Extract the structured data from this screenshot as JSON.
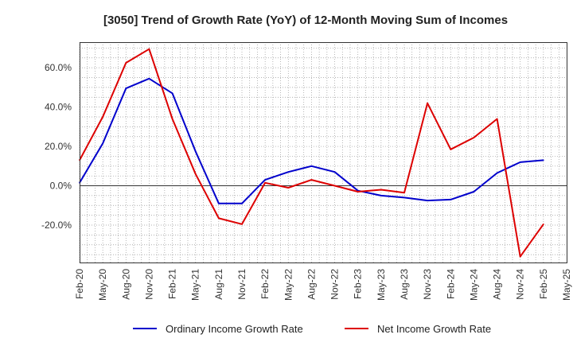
{
  "chart_data": {
    "type": "line",
    "title": "[3050]  Trend of Growth Rate (YoY) of 12-Month Moving Sum of Incomes",
    "xlabel": "",
    "ylabel": "",
    "x": [
      "Feb-20",
      "May-20",
      "Aug-20",
      "Nov-20",
      "Feb-21",
      "May-21",
      "Aug-21",
      "Nov-21",
      "Feb-22",
      "May-22",
      "Aug-22",
      "Nov-22",
      "Feb-23",
      "May-23",
      "Aug-23",
      "Nov-23",
      "Feb-24",
      "May-24",
      "Aug-24",
      "Nov-24",
      "Feb-25",
      "May-25"
    ],
    "yticks": [
      "-20.0%",
      "0.0%",
      "20.0%",
      "40.0%",
      "60.0%"
    ],
    "ylim": [
      -39,
      73
    ],
    "grid": true,
    "legend_position": "bottom",
    "series": [
      {
        "name": "Ordinary Income Growth Rate",
        "color": "#0000cc",
        "values": [
          1.5,
          21.5,
          49.5,
          54.5,
          47.0,
          17.5,
          -9.0,
          -9.0,
          3.0,
          7.0,
          10.0,
          7.0,
          -2.5,
          -5.0,
          -6.0,
          -7.5,
          -7.0,
          -3.0,
          6.5,
          12.0,
          13.0,
          null
        ]
      },
      {
        "name": "Net Income Growth Rate",
        "color": "#dd0000",
        "values": [
          13.0,
          35.0,
          62.5,
          69.5,
          34.0,
          6.0,
          -16.5,
          -19.5,
          1.5,
          -1.0,
          3.0,
          0.0,
          -3.0,
          -2.0,
          -3.5,
          42.0,
          18.5,
          24.5,
          34.0,
          -36.0,
          -19.5,
          null
        ]
      }
    ]
  }
}
